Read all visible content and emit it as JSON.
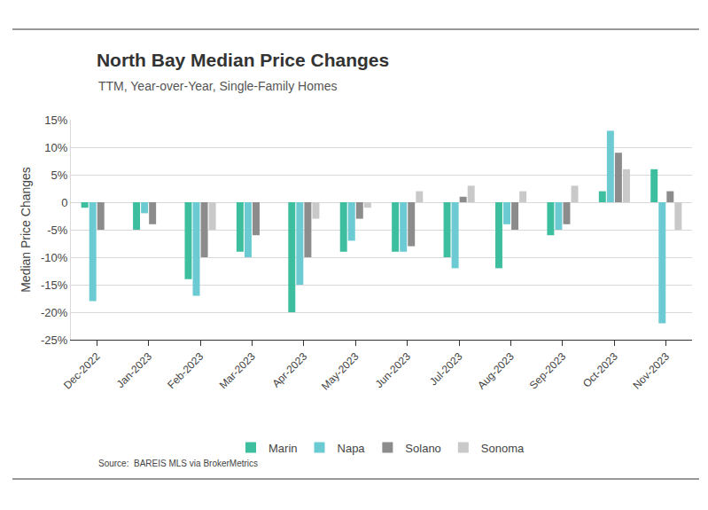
{
  "chart_data": {
    "type": "bar",
    "title": "North Bay Median Price Changes",
    "subtitle": "TTM, Year-over-Year, Single-Family Homes",
    "y_label": "Median Price Changes",
    "source": "Source:  BAREIS MLS via BrokerMetrics",
    "categories": [
      "Dec-2022",
      "Jan-2023",
      "Feb-2023",
      "Mar-2023",
      "Apr-2023",
      "May-2023",
      "Jun-2023",
      "Jul-2023",
      "Aug-2023",
      "Sep-2023",
      "Oct-2023",
      "Nov-2023"
    ],
    "series": [
      {
        "name": "Marin",
        "color": "#3dbf9f",
        "values": [
          -1,
          -5,
          -14,
          -9,
          -20,
          -9,
          -9,
          -10,
          -12,
          -6,
          2,
          6
        ]
      },
      {
        "name": "Napa",
        "color": "#6ccad3",
        "values": [
          -18,
          -2,
          -17,
          -10,
          -15,
          -7,
          -9,
          -12,
          -4,
          -5,
          13,
          -22
        ]
      },
      {
        "name": "Solano",
        "color": "#8c8c8c",
        "values": [
          -5,
          -4,
          -10,
          -6,
          -10,
          -3,
          -8,
          1,
          -5,
          -4,
          9,
          2
        ]
      },
      {
        "name": "Sonoma",
        "color": "#c9c9c9",
        "values": [
          null,
          null,
          -5,
          null,
          -3,
          -1,
          2,
          3,
          2,
          3,
          6,
          -5
        ]
      }
    ],
    "ylim": [
      -25,
      15
    ],
    "yticks": [
      {
        "value": -25,
        "label": "-25%"
      },
      {
        "value": -20,
        "label": "-20%"
      },
      {
        "value": -15,
        "label": "-15%"
      },
      {
        "value": -10,
        "label": "-10%"
      },
      {
        "value": -5,
        "label": "-5%"
      },
      0,
      {
        "value": 5,
        "label": "5%"
      },
      {
        "value": 10,
        "label": "10%"
      },
      {
        "value": 15,
        "label": "15%"
      }
    ],
    "grid": true,
    "legend": "bottom"
  }
}
